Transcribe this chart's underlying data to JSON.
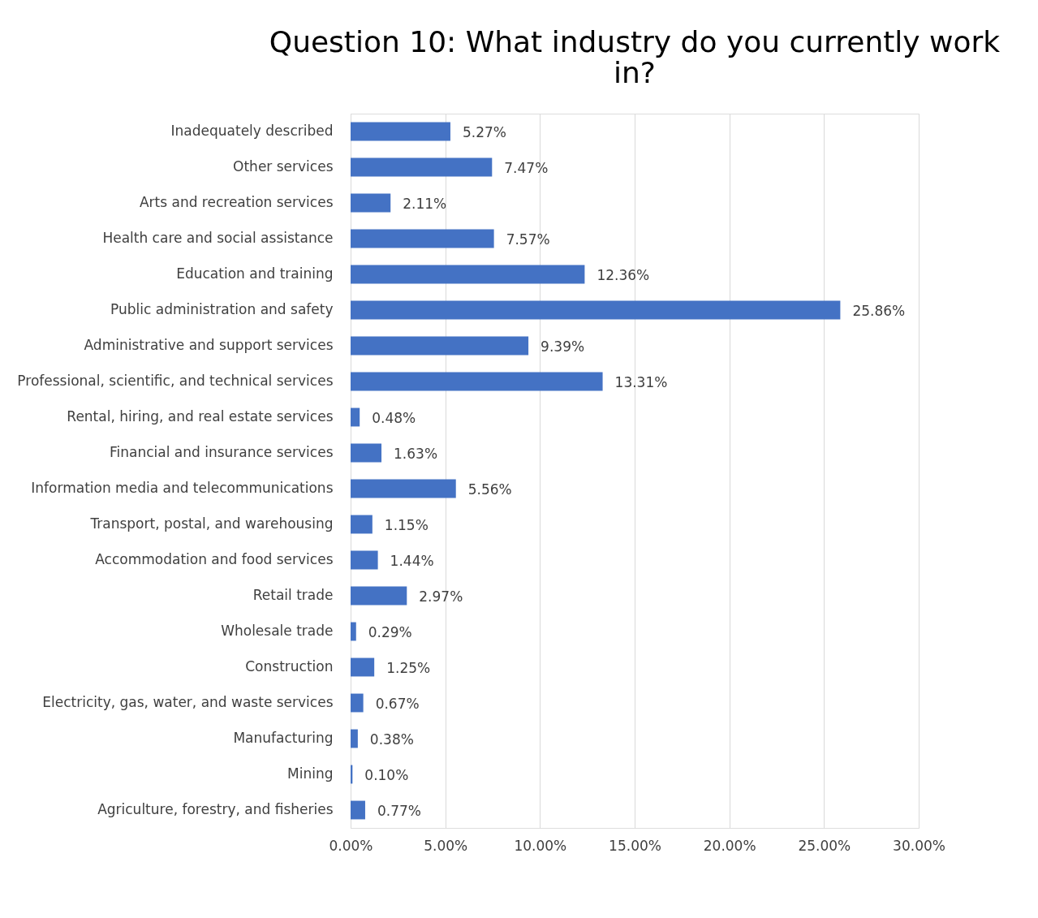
{
  "chart_data": {
    "type": "bar",
    "orientation": "horizontal",
    "title": "Question 10: What industry do you currently work in?",
    "categories": [
      "Inadequately described",
      "Other services",
      "Arts and recreation services",
      "Health care and social assistance",
      "Education and training",
      "Public administration and safety",
      "Administrative and support services",
      "Professional, scientific, and technical services",
      "Rental, hiring, and real estate services",
      "Financial and insurance services",
      "Information media and telecommunications",
      "Transport, postal, and warehousing",
      "Accommodation and food services",
      "Retail trade",
      "Wholesale trade",
      "Construction",
      "Electricity, gas, water, and waste services",
      "Manufacturing",
      "Mining",
      "Agriculture, forestry, and fisheries"
    ],
    "values": [
      5.27,
      7.47,
      2.11,
      7.57,
      12.36,
      25.86,
      9.39,
      13.31,
      0.48,
      1.63,
      5.56,
      1.15,
      1.44,
      2.97,
      0.29,
      1.25,
      0.67,
      0.38,
      0.1,
      0.77
    ],
    "value_labels": [
      "5.27%",
      "7.47%",
      "2.11%",
      "7.57%",
      "12.36%",
      "25.86%",
      "9.39%",
      "13.31%",
      "0.48%",
      "1.63%",
      "5.56%",
      "1.15%",
      "1.44%",
      "2.97%",
      "0.29%",
      "1.25%",
      "0.67%",
      "0.38%",
      "0.10%",
      "0.77%"
    ],
    "color": "#4472c4",
    "xlim": [
      0,
      30
    ],
    "xticks": [
      {
        "value": 0,
        "label": "0.00%"
      },
      {
        "value": 5,
        "label": "5.00%"
      },
      {
        "value": 10,
        "label": "10.00%"
      },
      {
        "value": 15,
        "label": "15.00%"
      },
      {
        "value": 20,
        "label": "20.00%"
      },
      {
        "value": 25,
        "label": "25.00%"
      },
      {
        "value": 30,
        "label": "30.00%"
      }
    ],
    "grid": "x"
  }
}
